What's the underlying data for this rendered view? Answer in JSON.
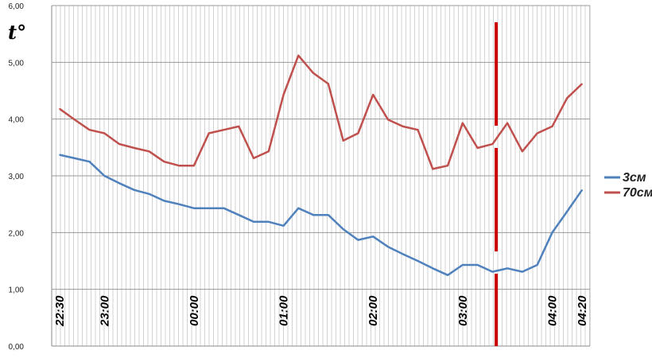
{
  "chart_data": {
    "type": "line",
    "ylabel": "t°",
    "ylim": [
      0,
      6
    ],
    "yticks": [
      "0,00",
      "1,00",
      "2,00",
      "3,00",
      "4,00",
      "5,00",
      "6,00"
    ],
    "x": [
      "22:30",
      "22:40",
      "22:50",
      "23:00",
      "23:10",
      "23:20",
      "23:30",
      "23:40",
      "23:50",
      "00:00",
      "00:10",
      "00:20",
      "00:30",
      "00:40",
      "00:50",
      "01:00",
      "01:10",
      "01:20",
      "01:30",
      "01:40",
      "01:50",
      "02:00",
      "02:10",
      "02:20",
      "02:30",
      "02:40",
      "02:50",
      "03:00",
      "03:10",
      "03:20",
      "03:30",
      "03:40",
      "03:50",
      "04:00",
      "04:10",
      "04:20"
    ],
    "xtick_labels": [
      {
        "label": "22:30",
        "index": 0
      },
      {
        "label": "23:00",
        "index": 3
      },
      {
        "label": "00:00",
        "index": 9
      },
      {
        "label": "01:00",
        "index": 15
      },
      {
        "label": "02:00",
        "index": 21
      },
      {
        "label": "03:00",
        "index": 27
      },
      {
        "label": "04:00",
        "index": 33
      },
      {
        "label": "04:20",
        "index": 35
      }
    ],
    "series": [
      {
        "name": "3см",
        "color": "#4f81bd",
        "values": [
          3.37,
          3.31,
          3.25,
          3.0,
          2.87,
          2.75,
          2.68,
          2.56,
          2.5,
          2.43,
          2.43,
          2.43,
          2.31,
          2.19,
          2.19,
          2.12,
          2.43,
          2.31,
          2.31,
          2.06,
          1.87,
          1.93,
          1.75,
          1.62,
          1.5,
          1.37,
          1.25,
          1.43,
          1.43,
          1.31,
          1.37,
          1.31,
          1.43,
          2.0,
          2.37,
          2.75
        ]
      },
      {
        "name": "70см",
        "color": "#c0504d",
        "values": [
          4.18,
          3.99,
          3.81,
          3.75,
          3.56,
          3.49,
          3.43,
          3.25,
          3.18,
          3.18,
          3.75,
          3.81,
          3.87,
          3.31,
          3.43,
          4.43,
          5.12,
          4.81,
          4.62,
          3.62,
          3.75,
          4.43,
          3.99,
          3.87,
          3.81,
          3.12,
          3.18,
          3.93,
          3.49,
          3.56,
          3.93,
          3.43,
          3.75,
          3.87,
          4.37,
          4.62
        ]
      }
    ],
    "marker_line": {
      "position": 29.25,
      "color": "#cc0000",
      "style": "dashed"
    },
    "grid": {
      "horizontal": true,
      "vertical": true
    },
    "legend": {
      "placement": "right"
    }
  }
}
